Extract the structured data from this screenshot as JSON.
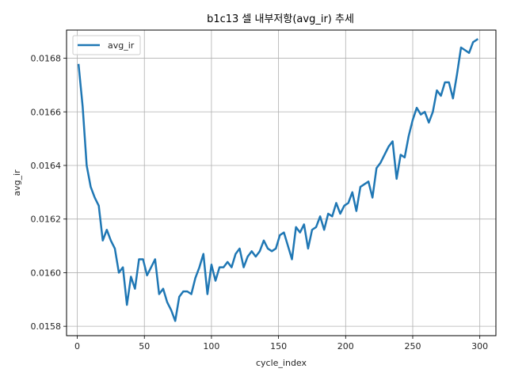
{
  "chart_data": {
    "type": "line",
    "title": "b1c13 셀 내부저항(avg_ir) 추세",
    "xlabel": "cycle_index",
    "ylabel": "avg_ir",
    "xlim": [
      -8,
      312
    ],
    "ylim": [
      0.015765,
      0.016905
    ],
    "xticks": [
      0,
      50,
      100,
      150,
      200,
      250,
      300
    ],
    "xtick_labels": [
      "0",
      "50",
      "100",
      "150",
      "200",
      "250",
      "300"
    ],
    "yticks": [
      0.0158,
      0.016,
      0.0162,
      0.0164,
      0.0166,
      0.0168
    ],
    "ytick_labels": [
      "0.0158",
      "0.0160",
      "0.0162",
      "0.0164",
      "0.0166",
      "0.0168"
    ],
    "grid": true,
    "legend_position": "upper-left",
    "series": [
      {
        "name": "avg_ir",
        "color": "#1f77b4",
        "x": [
          1,
          4,
          7,
          10,
          13,
          16,
          19,
          22,
          25,
          28,
          31,
          34,
          37,
          40,
          43,
          46,
          49,
          52,
          55,
          58,
          61,
          64,
          67,
          70,
          73,
          76,
          79,
          82,
          85,
          88,
          91,
          94,
          97,
          100,
          103,
          106,
          109,
          112,
          115,
          118,
          121,
          124,
          127,
          130,
          133,
          136,
          139,
          142,
          145,
          148,
          151,
          154,
          157,
          160,
          163,
          166,
          169,
          172,
          175,
          178,
          181,
          184,
          187,
          190,
          193,
          196,
          199,
          202,
          205,
          208,
          211,
          214,
          217,
          220,
          223,
          226,
          229,
          232,
          235,
          238,
          241,
          244,
          247,
          250,
          253,
          256,
          259,
          262,
          265,
          268,
          271,
          274,
          277,
          280,
          283,
          286,
          289,
          292,
          295,
          298
        ],
        "values": [
          0.016775,
          0.01662,
          0.0164,
          0.01632,
          0.01628,
          0.01625,
          0.01612,
          0.01616,
          0.01612,
          0.01609,
          0.016,
          0.01602,
          0.01588,
          0.015985,
          0.01594,
          0.01605,
          0.01605,
          0.01599,
          0.01602,
          0.01605,
          0.01592,
          0.01594,
          0.01589,
          0.01586,
          0.01582,
          0.01591,
          0.01593,
          0.01593,
          0.01592,
          0.01598,
          0.01602,
          0.01607,
          0.01592,
          0.01603,
          0.01597,
          0.01602,
          0.01602,
          0.01604,
          0.01602,
          0.01607,
          0.01609,
          0.01602,
          0.01606,
          0.01608,
          0.01606,
          0.01608,
          0.01612,
          0.01609,
          0.01608,
          0.01609,
          0.01614,
          0.01615,
          0.0161,
          0.01605,
          0.01617,
          0.01615,
          0.01618,
          0.01609,
          0.01616,
          0.01617,
          0.01621,
          0.01616,
          0.01622,
          0.01621,
          0.01626,
          0.01622,
          0.01625,
          0.01626,
          0.0163,
          0.01623,
          0.01632,
          0.01633,
          0.01634,
          0.01628,
          0.01639,
          0.01641,
          0.01644,
          0.01647,
          0.01649,
          0.01635,
          0.01644,
          0.01643,
          0.01651,
          0.01657,
          0.016615,
          0.01659,
          0.0166,
          0.01656,
          0.0166,
          0.01668,
          0.01666,
          0.01671,
          0.01671,
          0.01665,
          0.01674,
          0.01684,
          0.01683,
          0.01682,
          0.01686,
          0.01687
        ]
      }
    ]
  }
}
